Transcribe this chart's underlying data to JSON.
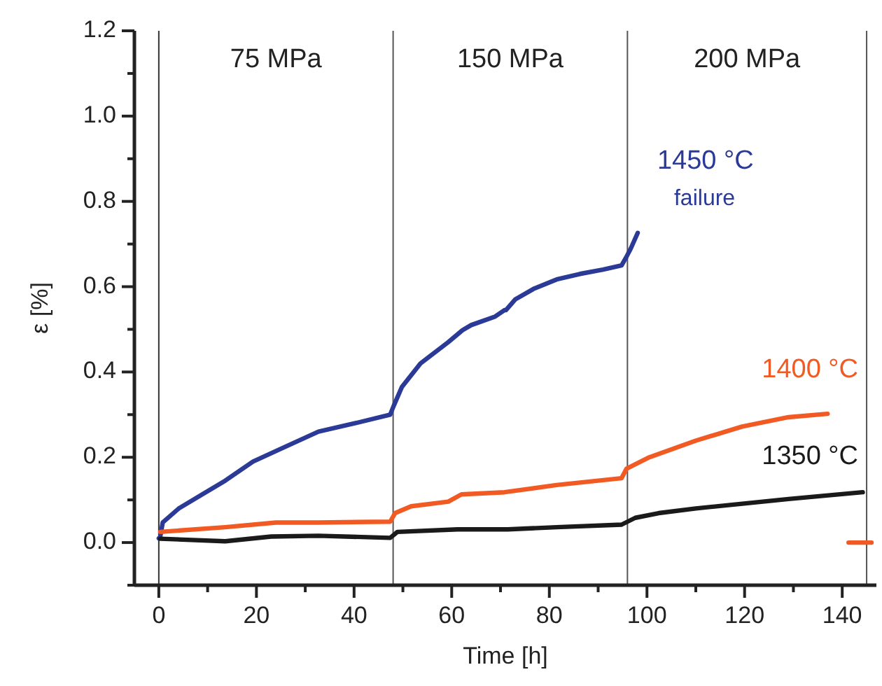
{
  "chart_data": {
    "type": "line",
    "xlabel": "Time [h]",
    "ylabel": "ε [%]",
    "xlim": [
      -5,
      147
    ],
    "ylim": [
      -0.1,
      1.2
    ],
    "xticks": [
      0,
      {
        "value": 10,
        "label": null
      },
      20,
      {
        "value": 30,
        "label": null
      },
      40,
      {
        "value": 50,
        "label": null
      },
      60,
      {
        "value": 70,
        "label": null
      },
      80,
      {
        "value": 90,
        "label": null
      },
      100,
      {
        "value": 110,
        "label": null
      },
      120,
      {
        "value": 130,
        "label": null
      },
      140
    ],
    "yticks": [
      {
        "value": -0.1,
        "label": null
      },
      {
        "value": 0,
        "label": "0.0"
      },
      {
        "value": 0.1,
        "label": null
      },
      {
        "value": 0.2,
        "label": "0.2"
      },
      {
        "value": 0.3,
        "label": null
      },
      {
        "value": 0.4,
        "label": "0.4"
      },
      {
        "value": 0.5,
        "label": null
      },
      {
        "value": 0.6,
        "label": "0.6"
      },
      {
        "value": 0.7,
        "label": null
      },
      {
        "value": 0.8,
        "label": "0.8"
      },
      {
        "value": 0.9,
        "label": null
      },
      {
        "value": 1.0,
        "label": "1.0"
      },
      {
        "value": 1.1,
        "label": null
      },
      {
        "value": 1.2,
        "label": "1.2"
      }
    ],
    "grid": false,
    "line_style": "solid",
    "series": [
      {
        "name": "1450 °C",
        "color": "#2b3a97",
        "x": [
          0,
          0.3,
          0.8,
          4.1,
          8.9,
          13.6,
          19.3,
          25,
          32.7,
          40.3,
          47.4,
          48.1,
          49.8,
          53.6,
          59.3,
          62.2,
          64,
          68.9,
          70.8,
          71.1,
          73,
          76.8,
          81.5,
          86.3,
          91,
          94.8,
          95.8,
          96.7,
          98.1
        ],
        "values": [
          0.01,
          0.014,
          0.047,
          0.08,
          0.113,
          0.145,
          0.19,
          0.22,
          0.26,
          0.28,
          0.3,
          0.32,
          0.365,
          0.42,
          0.47,
          0.498,
          0.51,
          0.53,
          0.545,
          0.545,
          0.57,
          0.595,
          0.617,
          0.63,
          0.64,
          0.65,
          0.67,
          0.69,
          0.726
        ]
      },
      {
        "name": "1400 °C",
        "color": "#f25a24",
        "x": [
          0.3,
          13.6,
          24,
          32.7,
          47.4,
          48.4,
          51.7,
          59.3,
          62,
          70.8,
          81.5,
          94.8,
          95.8,
          100.5,
          110,
          119.5,
          129,
          137,
          139,
          141.3,
          146
        ],
        "values": [
          0.025,
          0.036,
          0.047,
          0.047,
          0.049,
          0.069,
          0.085,
          0.096,
          0.113,
          0.118,
          0.135,
          0.151,
          0.173,
          0.2,
          0.239,
          0.272,
          0.294,
          0.302,
          null,
          0,
          0
        ]
      },
      {
        "name": "1350 °C",
        "color": "#1a1a1a",
        "x": [
          0.3,
          13.6,
          23,
          32.7,
          47.4,
          48.9,
          61.2,
          71.5,
          81.5,
          94.8,
          97.6,
          102.4,
          110,
          119.5,
          129,
          144.2
        ],
        "values": [
          0.009,
          0.003,
          0.014,
          0.016,
          0.011,
          0.025,
          0.031,
          0.031,
          0.036,
          0.042,
          0.058,
          0.069,
          0.08,
          0.091,
          0.102,
          0.118
        ]
      }
    ],
    "ref_lines": [
      {
        "axis": "x",
        "value": 0,
        "color": "#333333"
      },
      {
        "axis": "x",
        "value": 48,
        "color": "#555555"
      },
      {
        "axis": "x",
        "value": 96,
        "color": "#555555"
      },
      {
        "axis": "x",
        "value": 145,
        "color": "#555555"
      }
    ],
    "annotations": [
      "75 MPa",
      "150 MPa",
      "200 MPa",
      "failure"
    ]
  }
}
